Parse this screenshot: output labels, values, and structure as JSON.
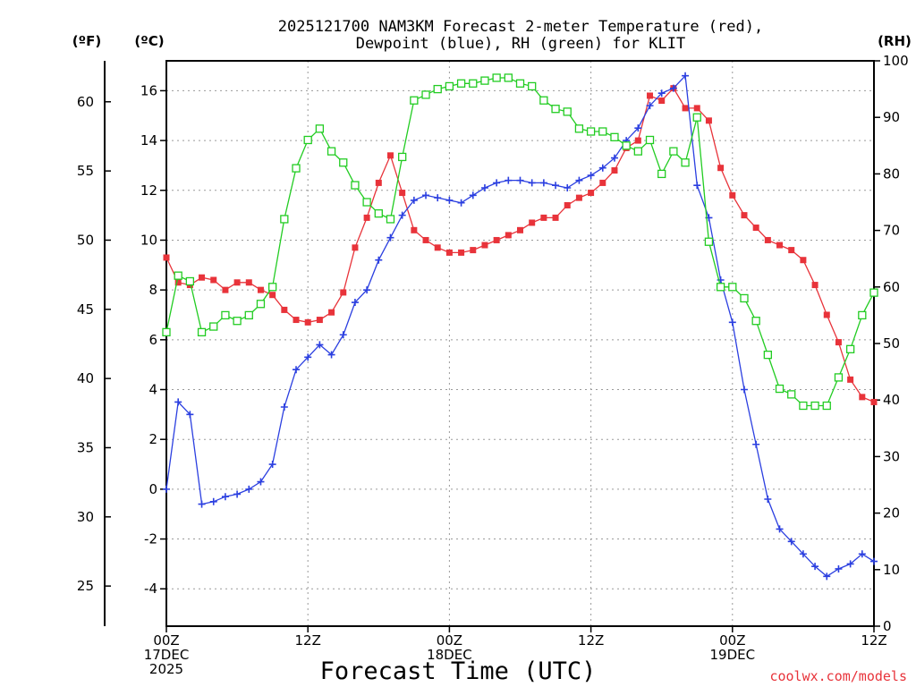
{
  "chart_data": {
    "type": "line",
    "title_line1": "2025121700 NAM3KM Forecast 2-meter Temperature (red),",
    "title_line2": "Dewpoint (blue), RH (green) for KLIT",
    "xlabel": "Forecast Time (UTC)",
    "credit": "coolwx.com/models",
    "units": {
      "fahrenheit": "(ºF)",
      "celsius": "(ºC)",
      "rh": "(RH)"
    },
    "x_range_hours": [
      0,
      60
    ],
    "celsius_range": [
      -5.5,
      17.2
    ],
    "rh_range": [
      0,
      100
    ],
    "celsius_ticks": [
      "-4",
      "-2",
      "0",
      "2",
      "4",
      "6",
      "8",
      "10",
      "12",
      "14",
      "16"
    ],
    "fahrenheit_ticks": [
      "25",
      "30",
      "35",
      "40",
      "45",
      "50",
      "55",
      "60"
    ],
    "rh_ticks": [
      "0",
      "10",
      "20",
      "30",
      "40",
      "50",
      "60",
      "70",
      "80",
      "90",
      "100"
    ],
    "x_ticks": [
      {
        "hour": 0,
        "lines": [
          "00Z",
          "17DEC",
          "2025"
        ]
      },
      {
        "hour": 12,
        "lines": [
          "12Z"
        ]
      },
      {
        "hour": 24,
        "lines": [
          "00Z",
          "18DEC"
        ]
      },
      {
        "hour": 36,
        "lines": [
          "12Z"
        ]
      },
      {
        "hour": 48,
        "lines": [
          "00Z",
          "19DEC"
        ]
      },
      {
        "hour": 60,
        "lines": [
          "12Z"
        ]
      }
    ],
    "colors": {
      "temperature": "#e8333a",
      "dewpoint": "#2b3fe0",
      "rh": "#22cc22",
      "credit": "#e8333a"
    },
    "series": [
      {
        "name": "Temperature",
        "unit": "C",
        "values": [
          9.3,
          8.3,
          8.2,
          8.5,
          8.4,
          8.0,
          8.3,
          8.3,
          8.0,
          7.8,
          7.2,
          6.8,
          6.7,
          6.8,
          7.1,
          7.9,
          9.7,
          10.9,
          12.3,
          13.4,
          11.9,
          10.4,
          10.0,
          9.7,
          9.5,
          9.5,
          9.6,
          9.8,
          10.0,
          10.2,
          10.4,
          10.7,
          10.9,
          10.9,
          11.4,
          11.7,
          11.9,
          12.3,
          12.8,
          13.7,
          14.0,
          15.8,
          15.6,
          16.1,
          15.3,
          15.3,
          14.8,
          12.9,
          11.8,
          11.0,
          10.5,
          10.0,
          9.8,
          9.6,
          9.2,
          8.2,
          7.0,
          5.9,
          4.4,
          3.7,
          3.5
        ]
      },
      {
        "name": "Dewpoint",
        "unit": "C",
        "values": [
          0.0,
          3.5,
          3.0,
          -0.6,
          -0.5,
          -0.3,
          -0.2,
          0.0,
          0.3,
          1.0,
          3.3,
          4.8,
          5.3,
          5.8,
          5.4,
          6.2,
          7.5,
          8.0,
          9.2,
          10.1,
          11.0,
          11.6,
          11.8,
          11.7,
          11.6,
          11.5,
          11.8,
          12.1,
          12.3,
          12.4,
          12.4,
          12.3,
          12.3,
          12.2,
          12.1,
          12.4,
          12.6,
          12.9,
          13.3,
          14.0,
          14.5,
          15.4,
          15.9,
          16.1,
          16.6,
          12.2,
          10.9,
          8.4,
          6.7,
          4.0,
          1.8,
          -0.4,
          -1.6,
          -2.1,
          -2.6,
          -3.1,
          -3.5,
          -3.2,
          -3.0,
          -2.6,
          -2.9
        ]
      },
      {
        "name": "RH",
        "unit": "%",
        "values": [
          52,
          62,
          61,
          52,
          53,
          55,
          54,
          55,
          57,
          60,
          72,
          81,
          86,
          88,
          84,
          82,
          78,
          75,
          73,
          72,
          83,
          93,
          94,
          95,
          95.5,
          96,
          96,
          96.5,
          97,
          97,
          96,
          95.5,
          93,
          91.5,
          91,
          88,
          87.5,
          87.5,
          86.5,
          85,
          84,
          86,
          80,
          84,
          82,
          90,
          68,
          60,
          60,
          58,
          54,
          48,
          42,
          41,
          39,
          39,
          39,
          44,
          49,
          55,
          59
        ]
      }
    ]
  }
}
